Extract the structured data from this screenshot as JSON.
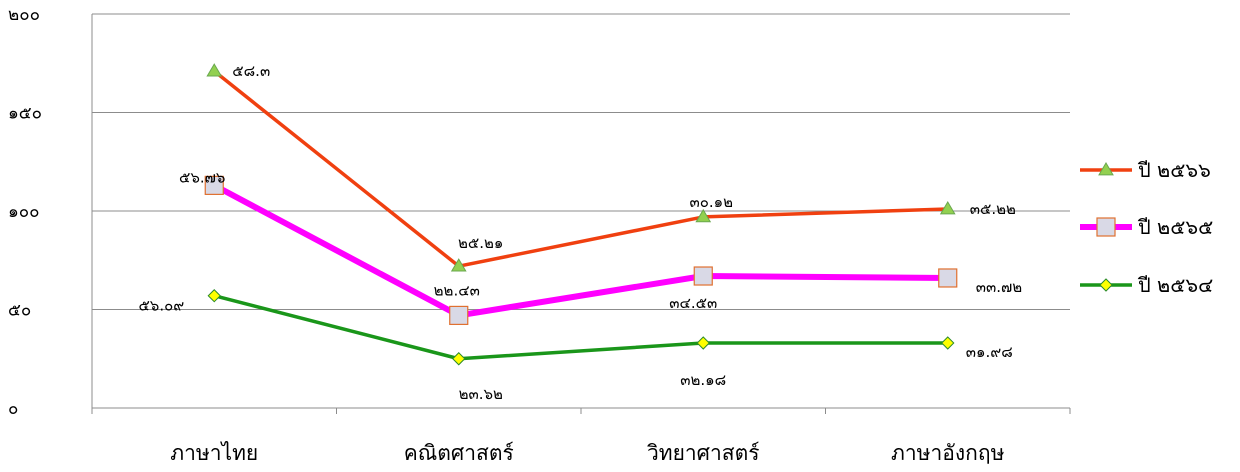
{
  "chart_data": {
    "type": "line",
    "categories": [
      "ภาษาไทย",
      "คณิตศาสตร์",
      "วิทยาศาสตร์",
      "ภาษาอังกฤษ"
    ],
    "y_ticks": [
      "๐",
      "๕๐",
      "๑๐๐",
      "๑๕๐",
      "๒๐๐"
    ],
    "ylim": [
      0,
      200
    ],
    "grid": true,
    "legend_position": "right",
    "series": [
      {
        "name": "ปี ๒๕๖๖",
        "values": [
          171,
          72,
          97,
          101
        ],
        "labels": [
          "๕๘.๓",
          "๒๕.๒๑",
          "๓๐.๑๒",
          "๓๕.๒๒"
        ],
        "color": "#f04010",
        "marker": "triangle",
        "marker_color": "#92d050"
      },
      {
        "name": "ปี ๒๕๖๕",
        "values": [
          113,
          47,
          67,
          66
        ],
        "labels": [
          "๕๖.๗๖",
          "๒๒.๔๓",
          "๓๔.๕๓",
          "๓๓.๗๒"
        ],
        "color": "#ff00ff",
        "marker": "square",
        "marker_color": "#d9d9e6"
      },
      {
        "name": "ปี ๒๕๖๔",
        "values": [
          57,
          25,
          33,
          33
        ],
        "labels": [
          "๕๖.๐๙",
          "๒๓.๖๒",
          "๓๒.๑๘",
          "๓๑.๙๘"
        ],
        "color": "#1a961a",
        "marker": "diamond",
        "marker_color": "#ffff00"
      }
    ]
  }
}
